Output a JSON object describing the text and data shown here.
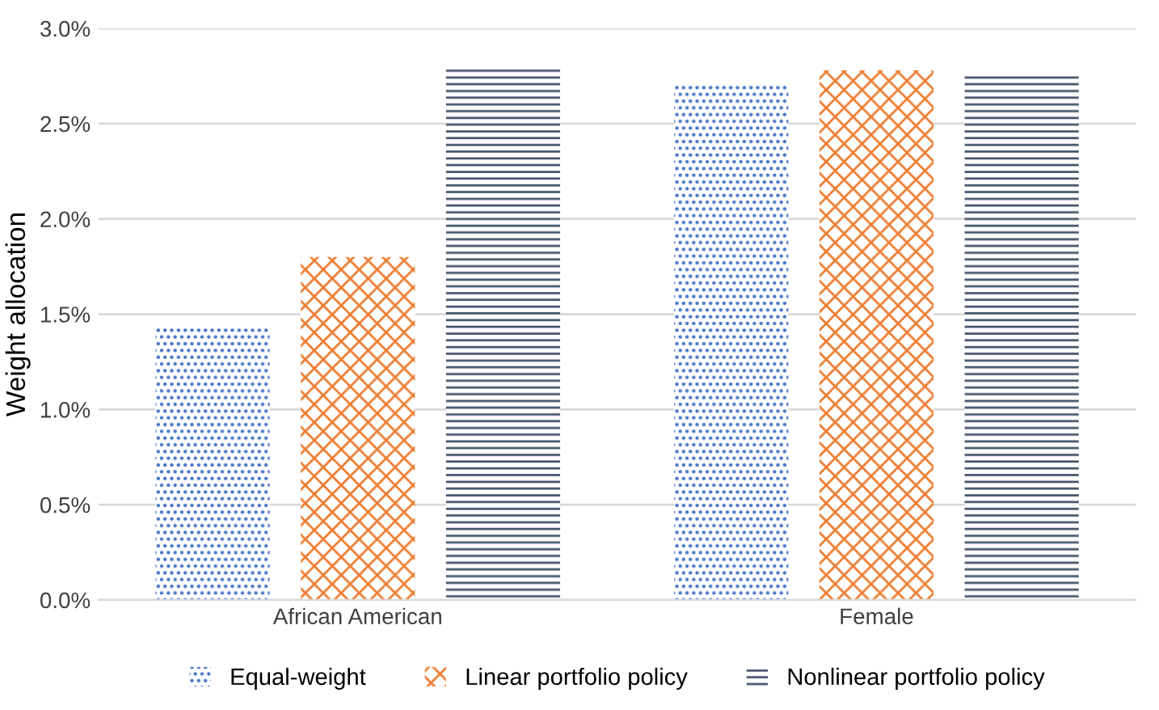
{
  "chart_data": {
    "type": "bar",
    "ylabel": "Weight allocation",
    "categories": [
      "African American",
      "Female"
    ],
    "series": [
      {
        "name": "Equal-weight",
        "color": "#4472c4",
        "values": [
          1.43,
          2.7
        ]
      },
      {
        "name": "Linear portfolio policy",
        "color": "#ed7d31",
        "values": [
          1.8,
          2.78
        ]
      },
      {
        "name": "Nonlinear portfolio policy",
        "color": "#44546a",
        "values": [
          2.79,
          2.76
        ]
      }
    ],
    "ylim": [
      0,
      3.0
    ],
    "yticks": [
      {
        "value": 0,
        "label": "0.0%"
      },
      {
        "value": 0.5,
        "label": "0.5%"
      },
      {
        "value": 1.0,
        "label": "1.0%"
      },
      {
        "value": 1.5,
        "label": "1.5%"
      },
      {
        "value": 2.0,
        "label": "2.0%"
      },
      {
        "value": 2.5,
        "label": "2.5%"
      },
      {
        "value": 3.0,
        "label": "3.0%"
      }
    ],
    "grid": "y",
    "legend": "bottom"
  }
}
